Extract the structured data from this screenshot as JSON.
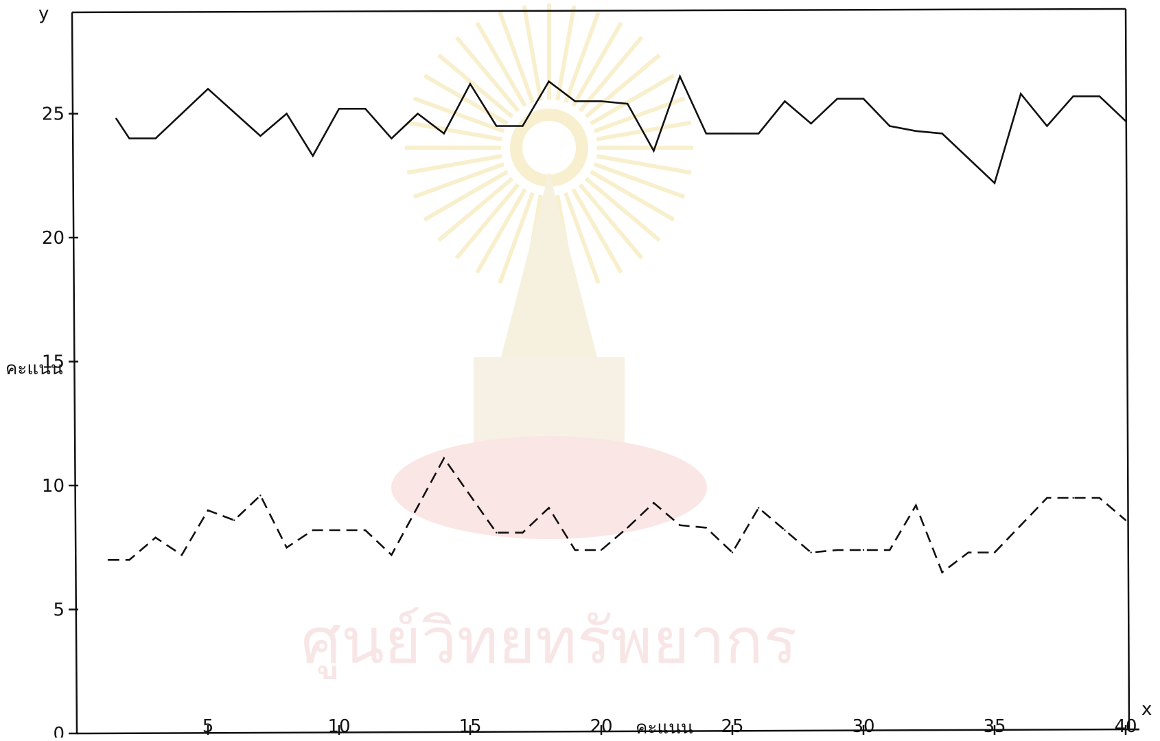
{
  "chart_data": {
    "type": "line",
    "title": "",
    "xlabel": "คะแนน",
    "ylabel": "คะแนน",
    "x_axis_letter": "x",
    "y_axis_letter": "y",
    "xlim": [
      0,
      40
    ],
    "ylim": [
      0,
      27
    ],
    "x_ticks": [
      5,
      10,
      15,
      20,
      25,
      30,
      35,
      40
    ],
    "x_tick_labels": [
      "5",
      "10",
      "15",
      "20",
      "25",
      "30",
      "35",
      "40"
    ],
    "y_ticks": [
      0,
      5,
      10,
      15,
      20,
      25
    ],
    "y_tick_labels": [
      "0",
      "5",
      "10",
      "15",
      "20",
      "25"
    ],
    "grid": false,
    "legend": "none",
    "series": [
      {
        "style": "solid",
        "color": "#111111",
        "x": [
          1.5,
          2,
          3,
          5,
          7,
          8,
          9,
          10,
          11,
          12,
          13,
          14,
          15,
          16,
          17,
          18,
          19,
          20,
          21,
          22,
          23,
          24,
          25,
          26,
          27,
          28,
          29,
          30,
          31,
          32,
          33,
          34,
          35,
          36,
          37,
          38,
          39,
          40
        ],
        "y": [
          24.8,
          24.0,
          24.0,
          26.0,
          24.1,
          25.0,
          23.3,
          25.2,
          25.2,
          24.0,
          25.0,
          24.2,
          26.2,
          24.5,
          24.5,
          26.3,
          25.5,
          25.5,
          25.4,
          23.5,
          26.5,
          24.2,
          24.2,
          24.2,
          25.5,
          24.6,
          25.6,
          25.6,
          24.5,
          24.3,
          24.2,
          23.2,
          22.2,
          25.8,
          24.5,
          25.7,
          25.7,
          24.7
        ]
      },
      {
        "style": "dashed",
        "color": "#111111",
        "x": [
          1.2,
          2,
          3,
          4,
          5,
          6,
          7,
          8,
          9,
          10,
          11,
          12,
          14,
          16,
          17,
          18,
          19,
          20,
          21,
          22,
          23,
          24,
          25,
          26,
          27,
          28,
          29,
          30,
          31,
          32,
          33,
          34,
          35,
          36,
          37,
          38,
          39,
          40
        ],
        "y": [
          7.0,
          7.0,
          7.9,
          7.2,
          9.0,
          8.6,
          9.6,
          7.5,
          8.2,
          8.2,
          8.2,
          7.2,
          11.1,
          8.1,
          8.1,
          9.1,
          7.4,
          7.4,
          8.3,
          9.3,
          8.4,
          8.3,
          7.3,
          9.1,
          8.2,
          7.3,
          7.4,
          7.4,
          7.4,
          9.2,
          6.5,
          7.3,
          7.3,
          8.4,
          9.5,
          9.5,
          9.5,
          8.6
        ]
      }
    ]
  },
  "colors": {
    "ink": "#111111",
    "background": "#ffffff",
    "watermark": "#f4d2d2"
  },
  "watermark": {
    "text": "ศูนย์วิทยทรัพยากร"
  }
}
